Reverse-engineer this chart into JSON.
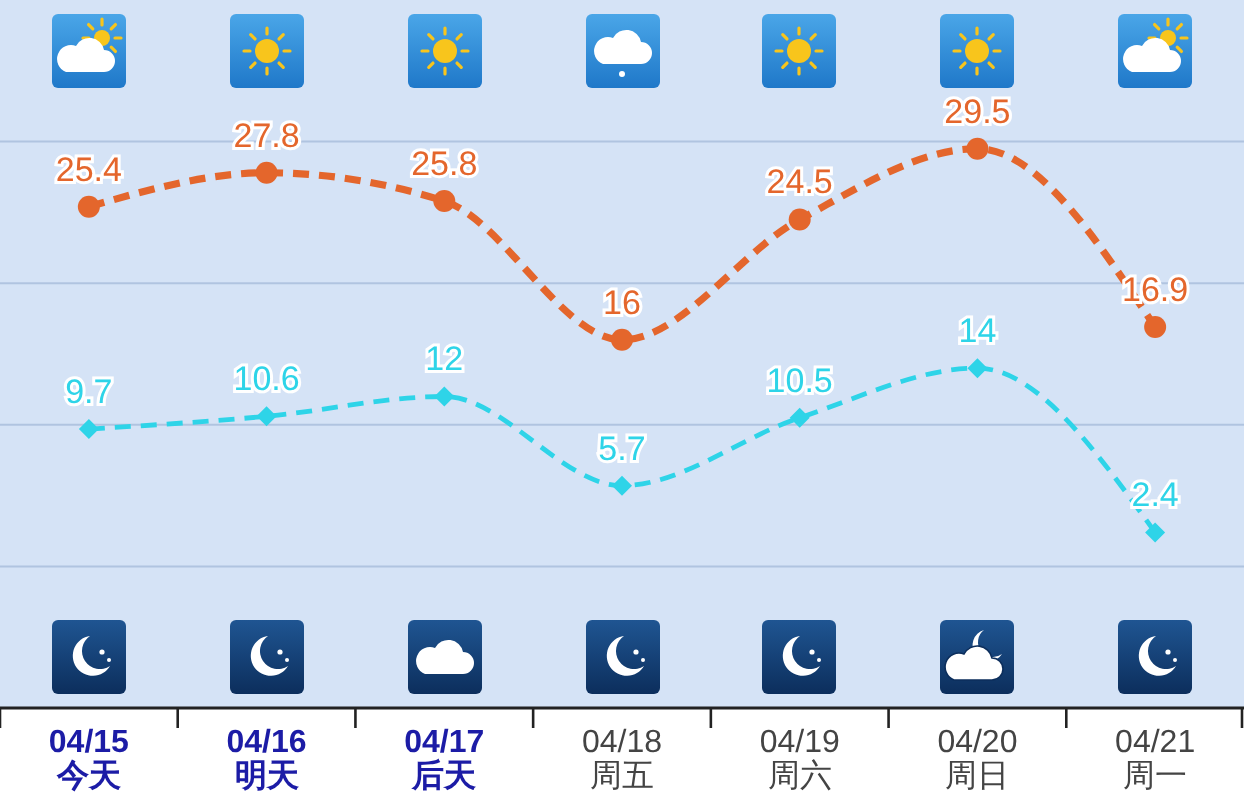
{
  "chart_data": {
    "type": "line",
    "categories": [
      "04/15\n今天",
      "04/16\n明天",
      "04/17\n后天",
      "04/18\n周五",
      "04/19\n周六",
      "04/20\n周日",
      "04/21\n周一"
    ],
    "series": [
      {
        "color": "#e4662c",
        "marker": "circle",
        "values": [
          25.4,
          27.8,
          25.8,
          16,
          24.5,
          29.5,
          16.9
        ]
      },
      {
        "color": "#2ed4e8",
        "marker": "diamond",
        "values": [
          9.7,
          10.6,
          12,
          5.7,
          10.5,
          14,
          2.4
        ]
      }
    ],
    "ylim": [
      -10,
      40
    ],
    "yticks": [
      {
        "value": 0,
        "label": null
      },
      {
        "value": 10,
        "label": null
      },
      {
        "value": 20,
        "label": null
      },
      {
        "value": 30,
        "label": null
      }
    ],
    "tick_labels": "x",
    "grid": "y",
    "line_style": "dashed",
    "data_labels": true
  }
}
